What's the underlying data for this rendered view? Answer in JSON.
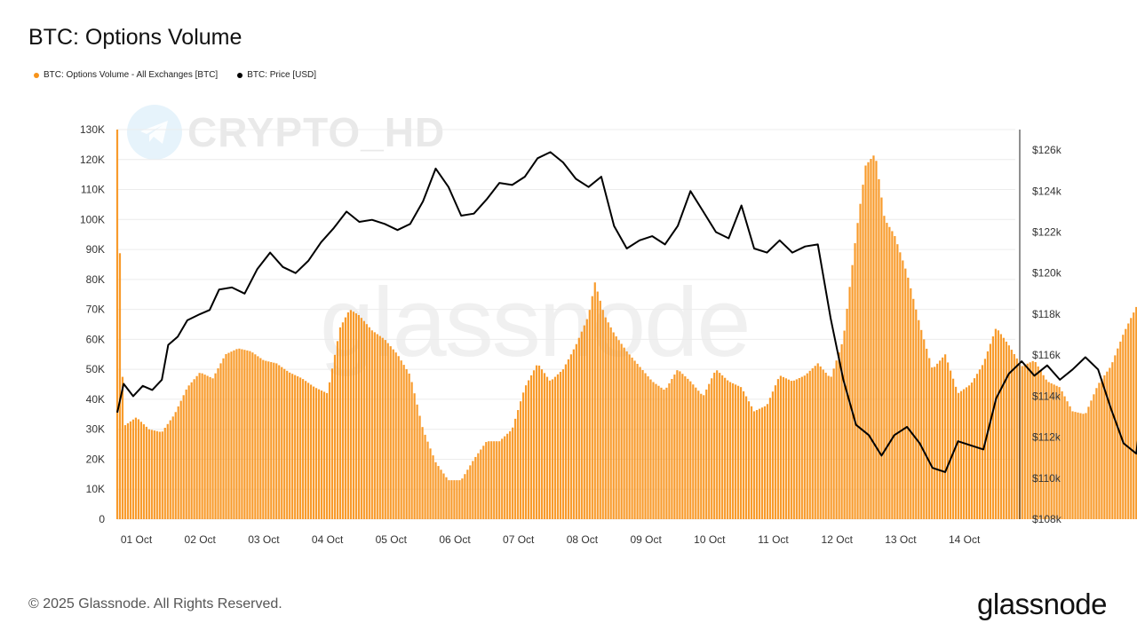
{
  "title": "BTC: Options Volume",
  "legend": [
    {
      "label": "BTC: Options Volume - All Exchanges [BTC]",
      "color": "#f7931a"
    },
    {
      "label": "BTC: Price [USD]",
      "color": "#000000"
    }
  ],
  "watermark": {
    "text": "glassnode",
    "channel": "CRYPTO_HD"
  },
  "footer": "© 2025 Glassnode. All Rights Reserved.",
  "brand": "glassnode",
  "chart_data": {
    "type": "bar+line",
    "title": "BTC: Options Volume",
    "x_tick_labels": [
      "01 Oct",
      "02 Oct",
      "03 Oct",
      "04 Oct",
      "05 Oct",
      "06 Oct",
      "07 Oct",
      "08 Oct",
      "09 Oct",
      "10 Oct",
      "11 Oct",
      "12 Oct",
      "13 Oct",
      "14 Oct"
    ],
    "y_left": {
      "ticks": [
        0,
        10000,
        20000,
        30000,
        40000,
        50000,
        60000,
        70000,
        80000,
        90000,
        100000,
        110000,
        120000,
        130000
      ],
      "tick_labels": [
        "0",
        "10K",
        "20K",
        "30K",
        "40K",
        "50K",
        "60K",
        "70K",
        "80K",
        "90K",
        "100K",
        "110K",
        "120K",
        "130K"
      ],
      "range": [
        0,
        130000
      ]
    },
    "y_right": {
      "ticks": [
        108000,
        110000,
        112000,
        114000,
        116000,
        118000,
        120000,
        122000,
        124000,
        126000
      ],
      "tick_labels": [
        "$108k",
        "$110k",
        "$112k",
        "$114k",
        "$116k",
        "$118k",
        "$120k",
        "$122k",
        "$124k",
        "$126k"
      ],
      "range": [
        108000,
        127000
      ]
    },
    "x_range_days": [
      0.7,
      14.8
    ],
    "grid": true,
    "legend_position": "top-left",
    "series": [
      {
        "name": "BTC: Options Volume - All Exchanges [BTC]",
        "type": "bar",
        "color": "#f7931a",
        "axis": "left",
        "points": [
          [
            0.7,
            130000
          ],
          [
            0.8,
            31000
          ],
          [
            1.0,
            34000
          ],
          [
            1.2,
            30000
          ],
          [
            1.4,
            29000
          ],
          [
            1.6,
            35000
          ],
          [
            1.8,
            44000
          ],
          [
            2.0,
            49000
          ],
          [
            2.2,
            47000
          ],
          [
            2.4,
            55000
          ],
          [
            2.6,
            57000
          ],
          [
            2.8,
            56000
          ],
          [
            3.0,
            53000
          ],
          [
            3.2,
            52000
          ],
          [
            3.4,
            49000
          ],
          [
            3.6,
            47000
          ],
          [
            3.8,
            44000
          ],
          [
            4.0,
            42000
          ],
          [
            4.2,
            64000
          ],
          [
            4.35,
            70000
          ],
          [
            4.5,
            68000
          ],
          [
            4.7,
            63000
          ],
          [
            4.9,
            60000
          ],
          [
            5.1,
            55000
          ],
          [
            5.3,
            48000
          ],
          [
            5.5,
            30000
          ],
          [
            5.7,
            19000
          ],
          [
            5.9,
            13000
          ],
          [
            6.1,
            13000
          ],
          [
            6.3,
            20000
          ],
          [
            6.5,
            26000
          ],
          [
            6.7,
            26000
          ],
          [
            6.9,
            30000
          ],
          [
            7.1,
            44000
          ],
          [
            7.3,
            52000
          ],
          [
            7.5,
            46000
          ],
          [
            7.7,
            50000
          ],
          [
            7.9,
            58000
          ],
          [
            8.1,
            68000
          ],
          [
            8.2,
            79000
          ],
          [
            8.35,
            68000
          ],
          [
            8.5,
            62000
          ],
          [
            8.7,
            56000
          ],
          [
            8.9,
            51000
          ],
          [
            9.1,
            46000
          ],
          [
            9.3,
            43000
          ],
          [
            9.5,
            50000
          ],
          [
            9.7,
            46000
          ],
          [
            9.9,
            41000
          ],
          [
            10.1,
            50000
          ],
          [
            10.3,
            46000
          ],
          [
            10.5,
            44000
          ],
          [
            10.7,
            36000
          ],
          [
            10.9,
            38000
          ],
          [
            11.1,
            48000
          ],
          [
            11.3,
            46000
          ],
          [
            11.5,
            48000
          ],
          [
            11.7,
            52000
          ],
          [
            11.9,
            47000
          ],
          [
            12.1,
            60000
          ],
          [
            12.3,
            95000
          ],
          [
            12.45,
            118000
          ],
          [
            12.6,
            122000
          ],
          [
            12.75,
            100000
          ],
          [
            12.9,
            95000
          ],
          [
            13.1,
            82000
          ],
          [
            13.3,
            65000
          ],
          [
            13.5,
            50000
          ],
          [
            13.7,
            55000
          ],
          [
            13.9,
            42000
          ],
          [
            14.1,
            45000
          ],
          [
            14.3,
            52000
          ],
          [
            14.5,
            64000
          ],
          [
            14.7,
            58000
          ],
          [
            14.9,
            51000
          ],
          [
            15.1,
            53000
          ],
          [
            15.3,
            46000
          ],
          [
            15.5,
            44000
          ],
          [
            15.7,
            36000
          ],
          [
            15.9,
            35000
          ],
          [
            16.1,
            45000
          ],
          [
            16.3,
            51000
          ],
          [
            16.5,
            62000
          ],
          [
            16.75,
            73000
          ]
        ]
      },
      {
        "name": "BTC: Price [USD]",
        "type": "line",
        "color": "#000000",
        "axis": "right",
        "points": [
          [
            0.7,
            113200
          ],
          [
            0.8,
            114600
          ],
          [
            0.95,
            114000
          ],
          [
            1.1,
            114500
          ],
          [
            1.25,
            114300
          ],
          [
            1.4,
            114800
          ],
          [
            1.5,
            116500
          ],
          [
            1.65,
            116900
          ],
          [
            1.8,
            117700
          ],
          [
            2.0,
            118000
          ],
          [
            2.15,
            118200
          ],
          [
            2.3,
            119200
          ],
          [
            2.5,
            119300
          ],
          [
            2.7,
            119000
          ],
          [
            2.9,
            120200
          ],
          [
            3.1,
            121000
          ],
          [
            3.3,
            120300
          ],
          [
            3.5,
            120000
          ],
          [
            3.7,
            120600
          ],
          [
            3.9,
            121500
          ],
          [
            4.1,
            122200
          ],
          [
            4.3,
            123000
          ],
          [
            4.5,
            122500
          ],
          [
            4.7,
            122600
          ],
          [
            4.9,
            122400
          ],
          [
            5.1,
            122100
          ],
          [
            5.3,
            122400
          ],
          [
            5.5,
            123500
          ],
          [
            5.7,
            125100
          ],
          [
            5.9,
            124200
          ],
          [
            6.1,
            122800
          ],
          [
            6.3,
            122900
          ],
          [
            6.5,
            123600
          ],
          [
            6.7,
            124400
          ],
          [
            6.9,
            124300
          ],
          [
            7.1,
            124700
          ],
          [
            7.3,
            125600
          ],
          [
            7.5,
            125900
          ],
          [
            7.7,
            125400
          ],
          [
            7.9,
            124600
          ],
          [
            8.1,
            124200
          ],
          [
            8.3,
            124700
          ],
          [
            8.5,
            122300
          ],
          [
            8.7,
            121200
          ],
          [
            8.9,
            121600
          ],
          [
            9.1,
            121800
          ],
          [
            9.3,
            121400
          ],
          [
            9.5,
            122300
          ],
          [
            9.7,
            124000
          ],
          [
            9.9,
            123000
          ],
          [
            10.1,
            122000
          ],
          [
            10.3,
            121700
          ],
          [
            10.5,
            123300
          ],
          [
            10.7,
            121200
          ],
          [
            10.9,
            121000
          ],
          [
            11.1,
            121600
          ],
          [
            11.3,
            121000
          ],
          [
            11.5,
            121300
          ],
          [
            11.7,
            121400
          ],
          [
            11.9,
            117800
          ],
          [
            12.1,
            114800
          ],
          [
            12.3,
            112600
          ],
          [
            12.5,
            112100
          ],
          [
            12.7,
            111100
          ],
          [
            12.9,
            112100
          ],
          [
            13.1,
            112500
          ],
          [
            13.3,
            111700
          ],
          [
            13.5,
            110500
          ],
          [
            13.7,
            110300
          ],
          [
            13.9,
            111800
          ],
          [
            14.1,
            111600
          ],
          [
            14.3,
            111400
          ],
          [
            14.5,
            113900
          ],
          [
            14.7,
            115100
          ],
          [
            14.9,
            115700
          ],
          [
            15.1,
            115000
          ],
          [
            15.3,
            115500
          ],
          [
            15.5,
            114800
          ],
          [
            15.7,
            115300
          ],
          [
            15.9,
            115900
          ],
          [
            16.1,
            115300
          ],
          [
            16.3,
            113400
          ],
          [
            16.5,
            111700
          ],
          [
            16.7,
            111200
          ],
          [
            16.75,
            112500
          ]
        ]
      }
    ]
  }
}
